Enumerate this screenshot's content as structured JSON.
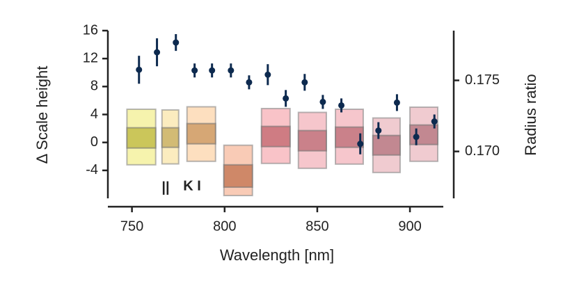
{
  "chart_data": {
    "type": "scatter",
    "xlabel": "Wavelength [nm]",
    "ylabel": "Δ Scale height",
    "y2label": "Radius ratio",
    "xlim": [
      737,
      918
    ],
    "xticks": [
      750,
      800,
      850,
      900
    ],
    "ylim": [
      -8,
      16
    ],
    "yticks": [
      -4,
      0,
      4,
      8,
      12,
      16
    ],
    "y2lim": [
      0.1667,
      0.1785
    ],
    "y2ticks": [
      {
        "value": 0.17,
        "label": "0.170"
      },
      0.175
    ],
    "series": [
      {
        "color": "#0d2a4f",
        "x": [
          753.8,
          763.5,
          773.7,
          783.8,
          793.2,
          803.4,
          813.2,
          823.3,
          833,
          843.2,
          853,
          863,
          873.2,
          883,
          893,
          903.4,
          913.2
        ],
        "values": [
          10.4,
          12.9,
          14.3,
          10.3,
          10.3,
          10.3,
          8.6,
          9.7,
          6.3,
          8.6,
          5.8,
          5.3,
          -0.2,
          1.7,
          5.7,
          0.8,
          3.0
        ],
        "errors": [
          2,
          2,
          1.2,
          1,
          1,
          1,
          1,
          1.5,
          1.2,
          1.2,
          1,
          1,
          1.5,
          1.2,
          1.2,
          1.2,
          1
        ]
      }
    ],
    "boxes": [
      {
        "x": [
          747.3,
          762.8
        ],
        "outer": [
          -3.2,
          4.75
        ],
        "inner": [
          -0.8,
          2.1
        ],
        "color": "#efe96a"
      },
      {
        "x": [
          766.2,
          775.2
        ],
        "outer": [
          -3.07,
          4.65
        ],
        "inner": [
          -0.7,
          2.1
        ],
        "color": "#f7dc8a"
      },
      {
        "x": [
          779.7,
          795.1
        ],
        "outer": [
          -2.7,
          5.1
        ],
        "inner": [
          -0.2,
          2.7
        ],
        "color": "#fcc48a"
      },
      {
        "x": [
          799.6,
          815
        ],
        "outer": [
          -7.6,
          -0.4
        ],
        "inner": [
          -6.4,
          -3.2
        ],
        "color": "#f4a07a"
      },
      {
        "x": [
          819.9,
          835.3
        ],
        "outer": [
          -3.0,
          4.85
        ],
        "inner": [
          -0.6,
          2.3
        ],
        "color": "#f4929a"
      },
      {
        "x": [
          839.8,
          854.9
        ],
        "outer": [
          -3.7,
          4.3
        ],
        "inner": [
          -1.2,
          1.7
        ],
        "color": "#ee98a2"
      },
      {
        "x": [
          859.8,
          874.8
        ],
        "outer": [
          -3.1,
          4.75
        ],
        "inner": [
          -0.7,
          2.2
        ],
        "color": "#ee98a2"
      },
      {
        "x": [
          880,
          894.7
        ],
        "outer": [
          -4.3,
          3.5
        ],
        "inner": [
          -1.8,
          1.0
        ],
        "color": "#e4a0aa"
      },
      {
        "x": [
          900,
          915
        ],
        "outer": [
          -2.7,
          5.05
        ],
        "inner": [
          -0.3,
          2.5
        ],
        "color": "#e4a0aa"
      }
    ],
    "annotations": [
      "||",
      "K I"
    ]
  }
}
